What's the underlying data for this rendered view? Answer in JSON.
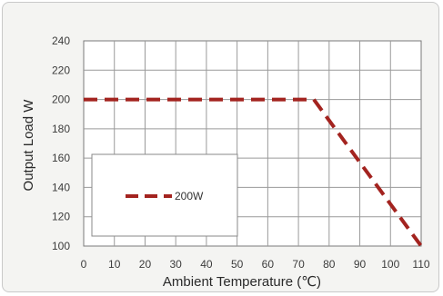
{
  "chart_data": {
    "type": "line",
    "title": "",
    "xlabel": "Ambient Temperature (℃)",
    "ylabel": "Output  Load W",
    "xlim": [
      0,
      110
    ],
    "ylim": [
      100,
      240
    ],
    "x_ticks": [
      "0",
      "10",
      "20",
      "30",
      "40",
      "50",
      "60",
      "70",
      "80",
      "90",
      "100",
      "110"
    ],
    "y_ticks": [
      "240",
      "220",
      "200",
      "180",
      "160",
      "140",
      "120",
      "100"
    ],
    "grid": true,
    "legend_position": "lower-left",
    "series": [
      {
        "name": "200W",
        "style": "dashed",
        "color": "#a3231f",
        "points": [
          [
            0,
            200
          ],
          [
            75,
            200
          ],
          [
            110,
            100
          ]
        ]
      }
    ]
  }
}
